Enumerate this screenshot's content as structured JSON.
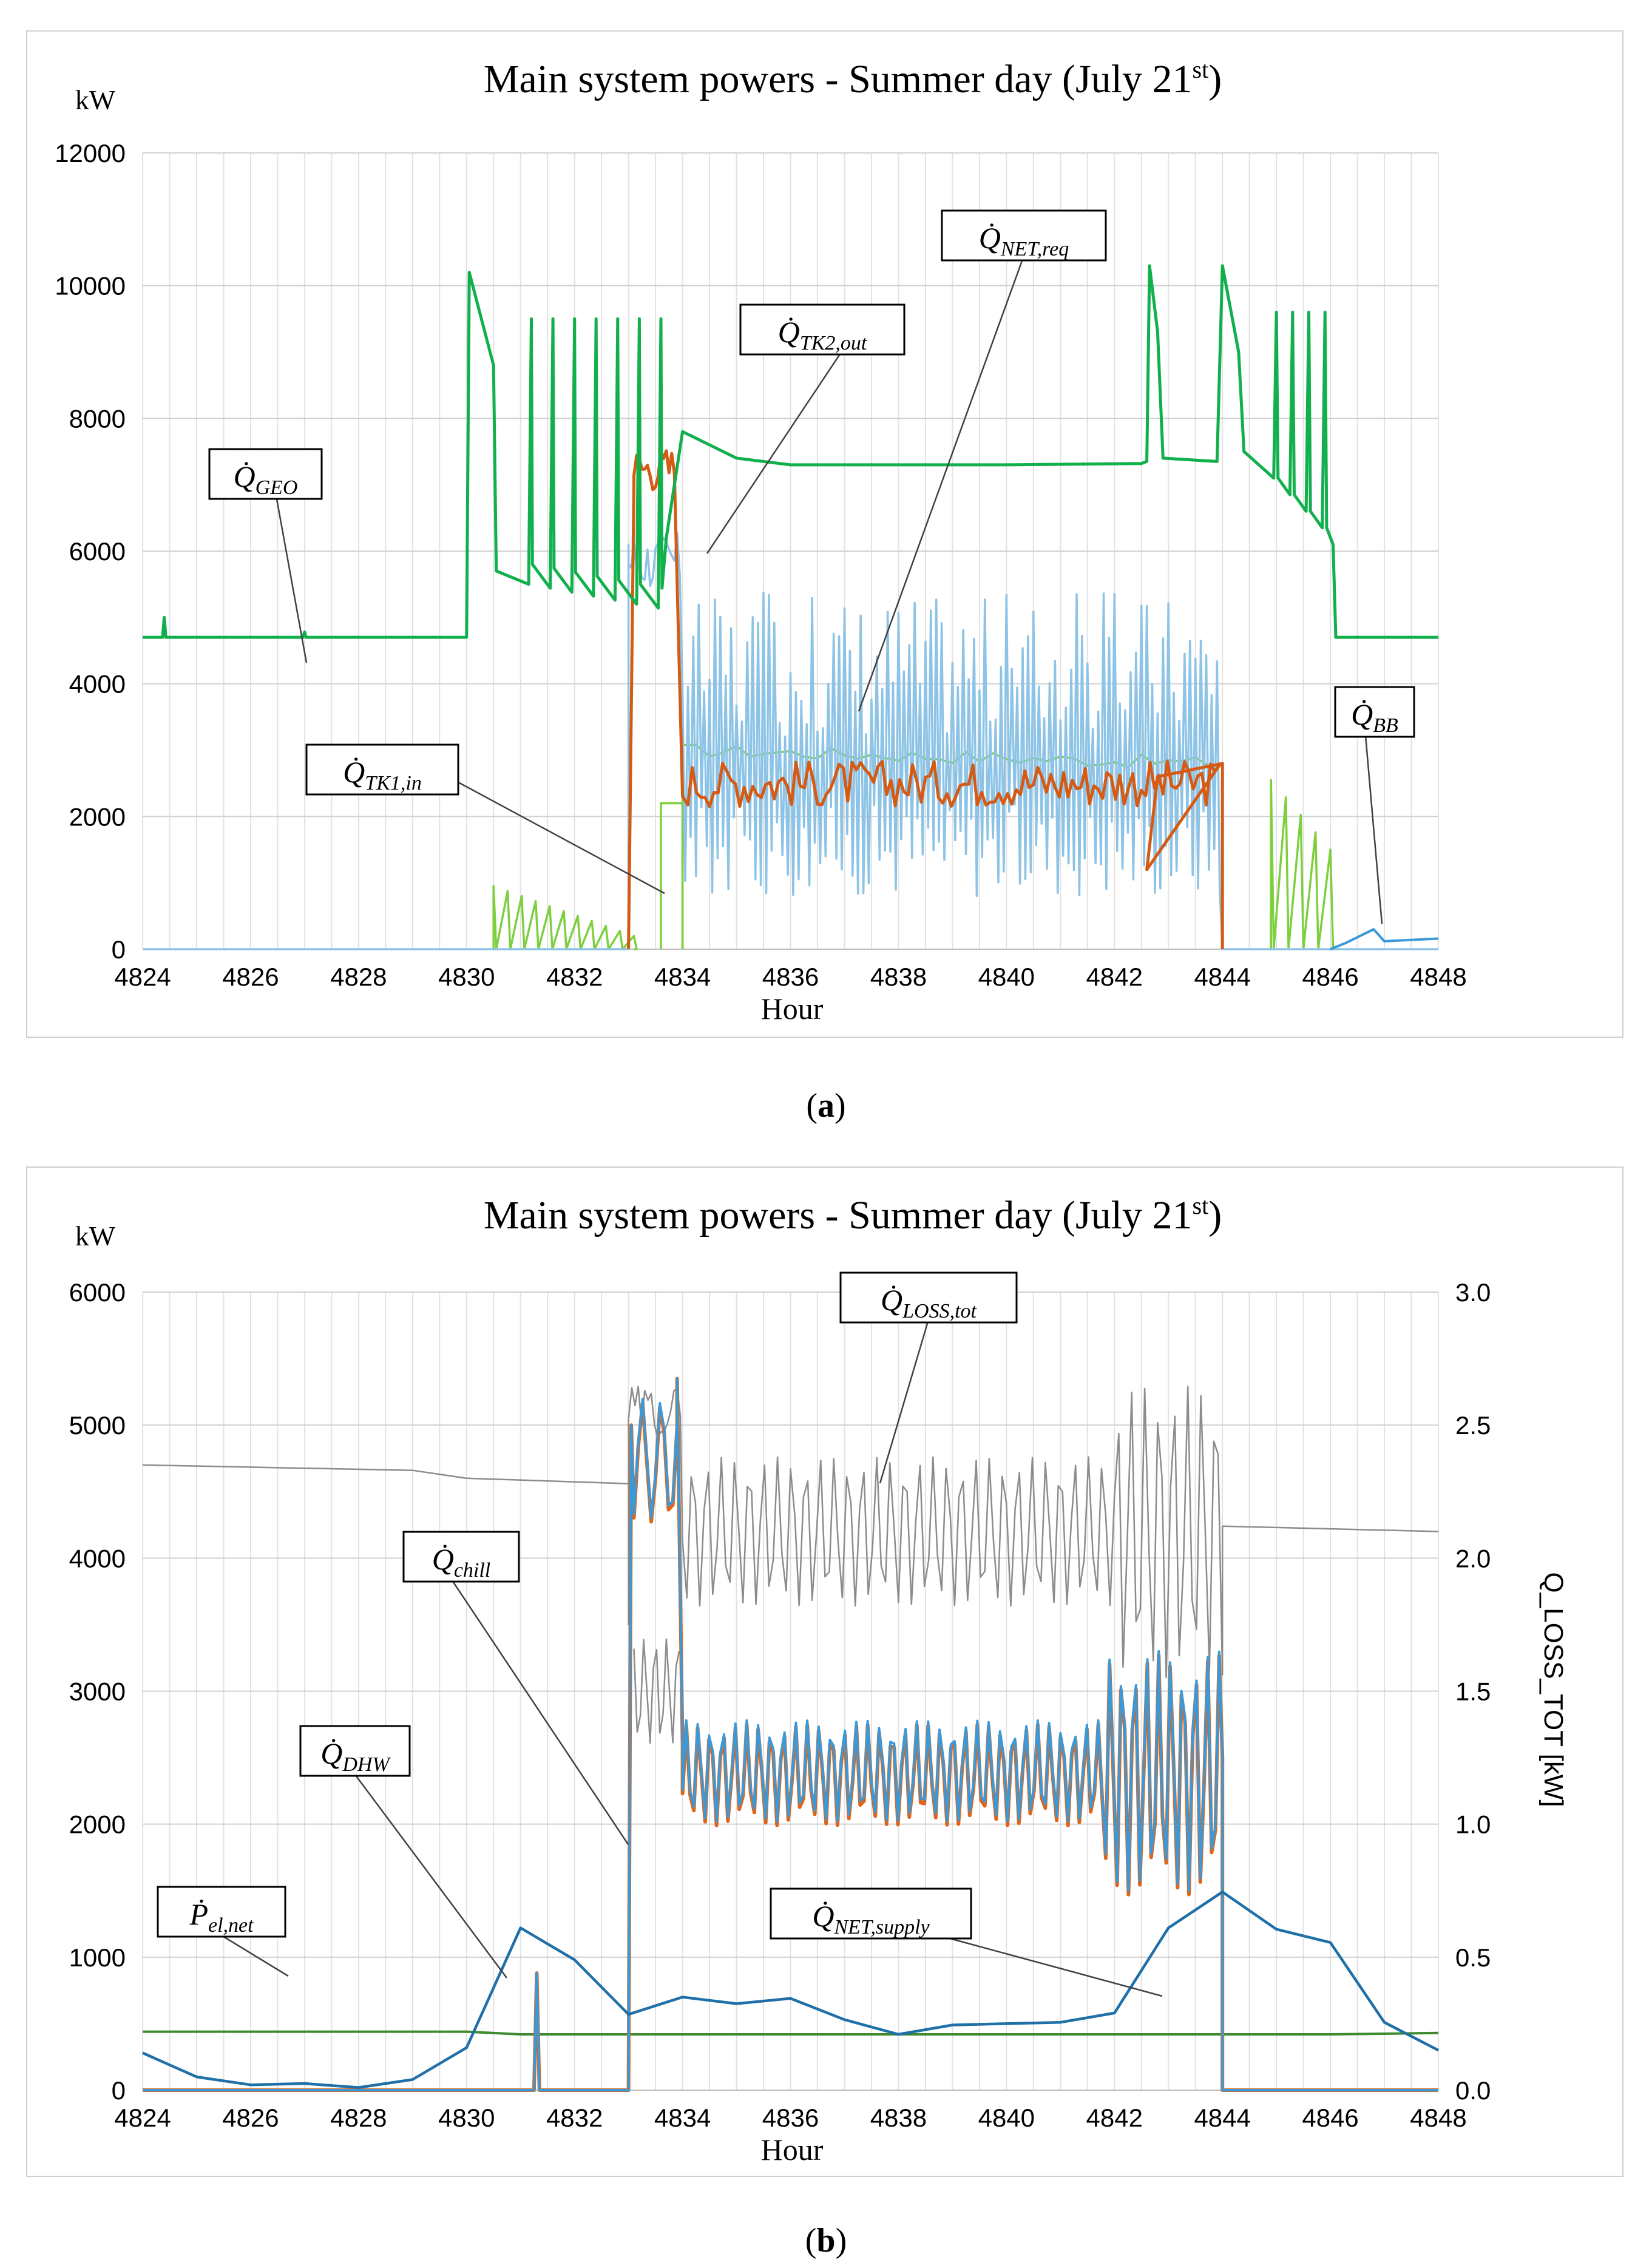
{
  "chart_data": [
    {
      "id": "a",
      "type": "line",
      "title": "Main system powers - Summer day (July 21",
      "title_sup": "st",
      "title_end": ")",
      "unit_label": "kW",
      "xlabel": "Hour",
      "xlim": [
        4824,
        4848
      ],
      "ylim": [
        0,
        12000
      ],
      "x_ticks": [
        "4824",
        "4826",
        "4828",
        "4830",
        "4832",
        "4834",
        "4836",
        "4838",
        "4840",
        "4842",
        "4844",
        "4846",
        "4848"
      ],
      "y_ticks": [
        "0",
        "2000",
        "4000",
        "6000",
        "8000",
        "10000",
        "12000"
      ],
      "grid": true,
      "caption_letter": "a",
      "colors": {
        "geo": "#12b04c",
        "tk1": "#7ecf3e",
        "tk2": "#d55a14",
        "req": "#8cc3e6",
        "bb": "#3a9ad9",
        "leader": "#404040"
      },
      "series": [
        {
          "key": "geo",
          "name": "Q̇GEO",
          "label_main": "Q̇",
          "label_sub": "GEO"
        },
        {
          "key": "tk2",
          "name": "Q̇TK2,out",
          "label_main": "Q̇",
          "label_sub": "TK2,out"
        },
        {
          "key": "req",
          "name": "Q̇NET,req",
          "label_main": "Q̇",
          "label_sub": "NET,req"
        },
        {
          "key": "tk1",
          "name": "Q̇TK1,in",
          "label_main": "Q̇",
          "label_sub": "TK1,in"
        },
        {
          "key": "bb",
          "name": "Q̇BB",
          "label_main": "Q̇",
          "label_sub": "BB"
        }
      ],
      "data": {
        "geo_base": 4700,
        "geo_spikes_early": [
          [
            4824.4,
            5000
          ],
          [
            4827.0,
            4780
          ]
        ],
        "geo_high_start": 4830.0,
        "geo_peak_4830": 10200,
        "geo_spike_times_1": [
          4831.2,
          4831.6,
          4832.0,
          4832.4,
          4832.8,
          4833.2,
          4833.6
        ],
        "geo_spike_value_1": 9500,
        "geo_plateau": [
          [
            4834.0,
            7800
          ],
          [
            4835.0,
            7400
          ],
          [
            4836.0,
            7300
          ],
          [
            4840.0,
            7300
          ],
          [
            4842.5,
            7320
          ]
        ],
        "geo_peak_4842": 10300,
        "geo_peak_4844": 10300,
        "geo_spike_times_2": [
          4845.0,
          4845.3,
          4845.6,
          4845.9
        ],
        "geo_spike_value_2": 9600,
        "geo_drop": 4846.1,
        "tk1_segments": [
          [
            4830.5,
            4833.1,
            950,
            200
          ],
          [
            4833.6,
            4834.0,
            2200,
            2200
          ],
          [
            4834.0,
            4844.0,
            3000,
            2800
          ],
          [
            4844.9,
            4846.0,
            2550,
            1500
          ]
        ],
        "tk2_range": [
          4833.0,
          4844.0
        ],
        "tk2_start_peak": 7600,
        "tk2_mean": 2500,
        "req_range": [
          4833.0,
          4844.0
        ],
        "req_high": [
          4833.0,
          4834.0,
          6100
        ],
        "req_oscillation": [
          800,
          5400
        ],
        "bb_points": [
          [
            4846.0,
            0
          ],
          [
            4846.3,
            100
          ],
          [
            4846.8,
            300
          ],
          [
            4847.0,
            120
          ],
          [
            4848.0,
            160
          ]
        ]
      }
    },
    {
      "id": "b",
      "type": "line",
      "title": "Main system powers - Summer day (July 21",
      "title_sup": "st",
      "title_end": ")",
      "unit_label": "kW",
      "xlabel": "Hour",
      "ylabel_right": "Q_LOSS_TOT [kW]",
      "xlim": [
        4824,
        4848
      ],
      "ylim": [
        0,
        6000
      ],
      "ylim_right": [
        0.0,
        3.0
      ],
      "x_ticks": [
        "4824",
        "4826",
        "4828",
        "4830",
        "4832",
        "4834",
        "4836",
        "4838",
        "4840",
        "4842",
        "4844",
        "4846",
        "4848"
      ],
      "y_ticks": [
        "0",
        "1000",
        "2000",
        "3000",
        "4000",
        "5000",
        "6000"
      ],
      "y2_ticks": [
        "0.0",
        "0.5",
        "1.0",
        "1.5",
        "2.0",
        "2.5",
        "3.0"
      ],
      "grid": true,
      "caption_letter": "b",
      "colors": {
        "loss": "#8c8c8c",
        "chill": "#3a9ad9",
        "supply": "#e0641a",
        "dhw": "#1f6fa8",
        "pel": "#3e8a2e",
        "leader": "#404040"
      },
      "series": [
        {
          "key": "loss",
          "name": "Q̇LOSS,tot",
          "label_main": "Q̇",
          "label_sub": "LOSS,tot",
          "axis": "right"
        },
        {
          "key": "chill",
          "name": "Q̇chill",
          "label_main": "Q̇",
          "label_sub": "chill"
        },
        {
          "key": "dhw",
          "name": "Q̇DHW",
          "label_main": "Q̇",
          "label_sub": "DHW"
        },
        {
          "key": "supply",
          "name": "Q̇NET,supply",
          "label_main": "Q̇",
          "label_sub": "NET,supply"
        },
        {
          "key": "pel",
          "name": "Ṗel,net",
          "label_main": "Ṗ",
          "label_sub": "el,net"
        }
      ],
      "data": {
        "loss_flat": [
          [
            4824,
            2.35
          ],
          [
            4829,
            2.33
          ],
          [
            4830,
            2.3
          ],
          [
            4833,
            2.28
          ],
          [
            4844,
            2.12
          ],
          [
            4848,
            2.1
          ]
        ],
        "loss_osc_range": [
          4833.0,
          4844.0
        ],
        "pel": [
          [
            4824,
            440
          ],
          [
            4830,
            440
          ],
          [
            4831,
            420
          ],
          [
            4846,
            420
          ],
          [
            4848,
            430
          ]
        ],
        "dhw": [
          [
            4824,
            280
          ],
          [
            4825,
            100
          ],
          [
            4826,
            40
          ],
          [
            4827,
            50
          ],
          [
            4828,
            20
          ],
          [
            4829,
            80
          ],
          [
            4830,
            320
          ],
          [
            4831,
            1220
          ],
          [
            4832,
            980
          ],
          [
            4833,
            570
          ],
          [
            4834,
            700
          ],
          [
            4835,
            650
          ],
          [
            4836,
            690
          ],
          [
            4837,
            530
          ],
          [
            4838,
            420
          ],
          [
            4839,
            490
          ],
          [
            4840,
            500
          ],
          [
            4841,
            510
          ],
          [
            4842,
            580
          ],
          [
            4843,
            1220
          ],
          [
            4844,
            1490
          ],
          [
            4845,
            1210
          ],
          [
            4846,
            1110
          ],
          [
            4847,
            510
          ],
          [
            4848,
            300
          ]
        ],
        "chill_spike": [
          4831.3,
          880
        ],
        "chill_range": [
          4833.0,
          4844.0
        ],
        "chill_start_peak": 5350,
        "chill_mean": 2400
      }
    }
  ]
}
